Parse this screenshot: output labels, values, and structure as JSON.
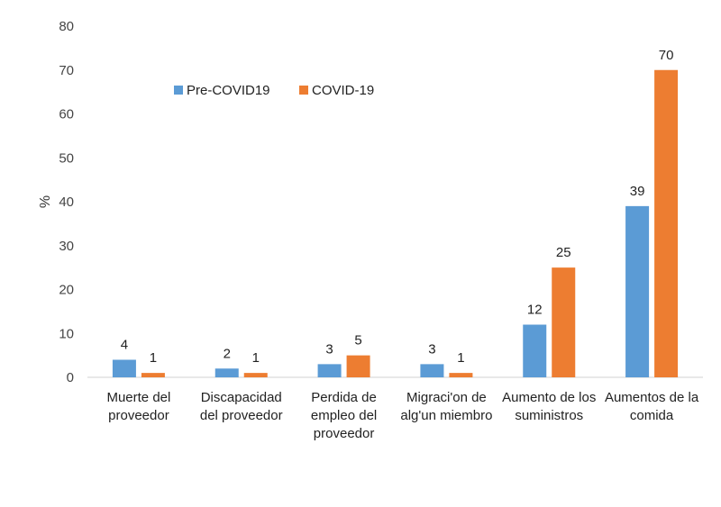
{
  "chart_data": {
    "type": "bar",
    "ylabel": "%",
    "ylim": [
      0,
      80
    ],
    "yticks": [
      0,
      10,
      20,
      30,
      40,
      50,
      60,
      70,
      80
    ],
    "grid": false,
    "legend_position": "top-left",
    "categories": [
      [
        "Muerte del",
        "proveedor"
      ],
      [
        "Discapacidad",
        "del proveedor"
      ],
      [
        "Perdida de",
        "empleo del",
        "proveedor"
      ],
      [
        "Migraci'on de",
        "alg'un miembro"
      ],
      [
        "Aumento de los",
        "suministros"
      ],
      [
        "Aumentos de la",
        "comida"
      ]
    ],
    "series": [
      {
        "name": "Pre-COVID19",
        "color": "#5B9BD5",
        "values": [
          4,
          2,
          3,
          3,
          12,
          39
        ]
      },
      {
        "name": "COVID-19",
        "color": "#ED7D31",
        "values": [
          1,
          1,
          5,
          1,
          25,
          70
        ]
      }
    ]
  }
}
